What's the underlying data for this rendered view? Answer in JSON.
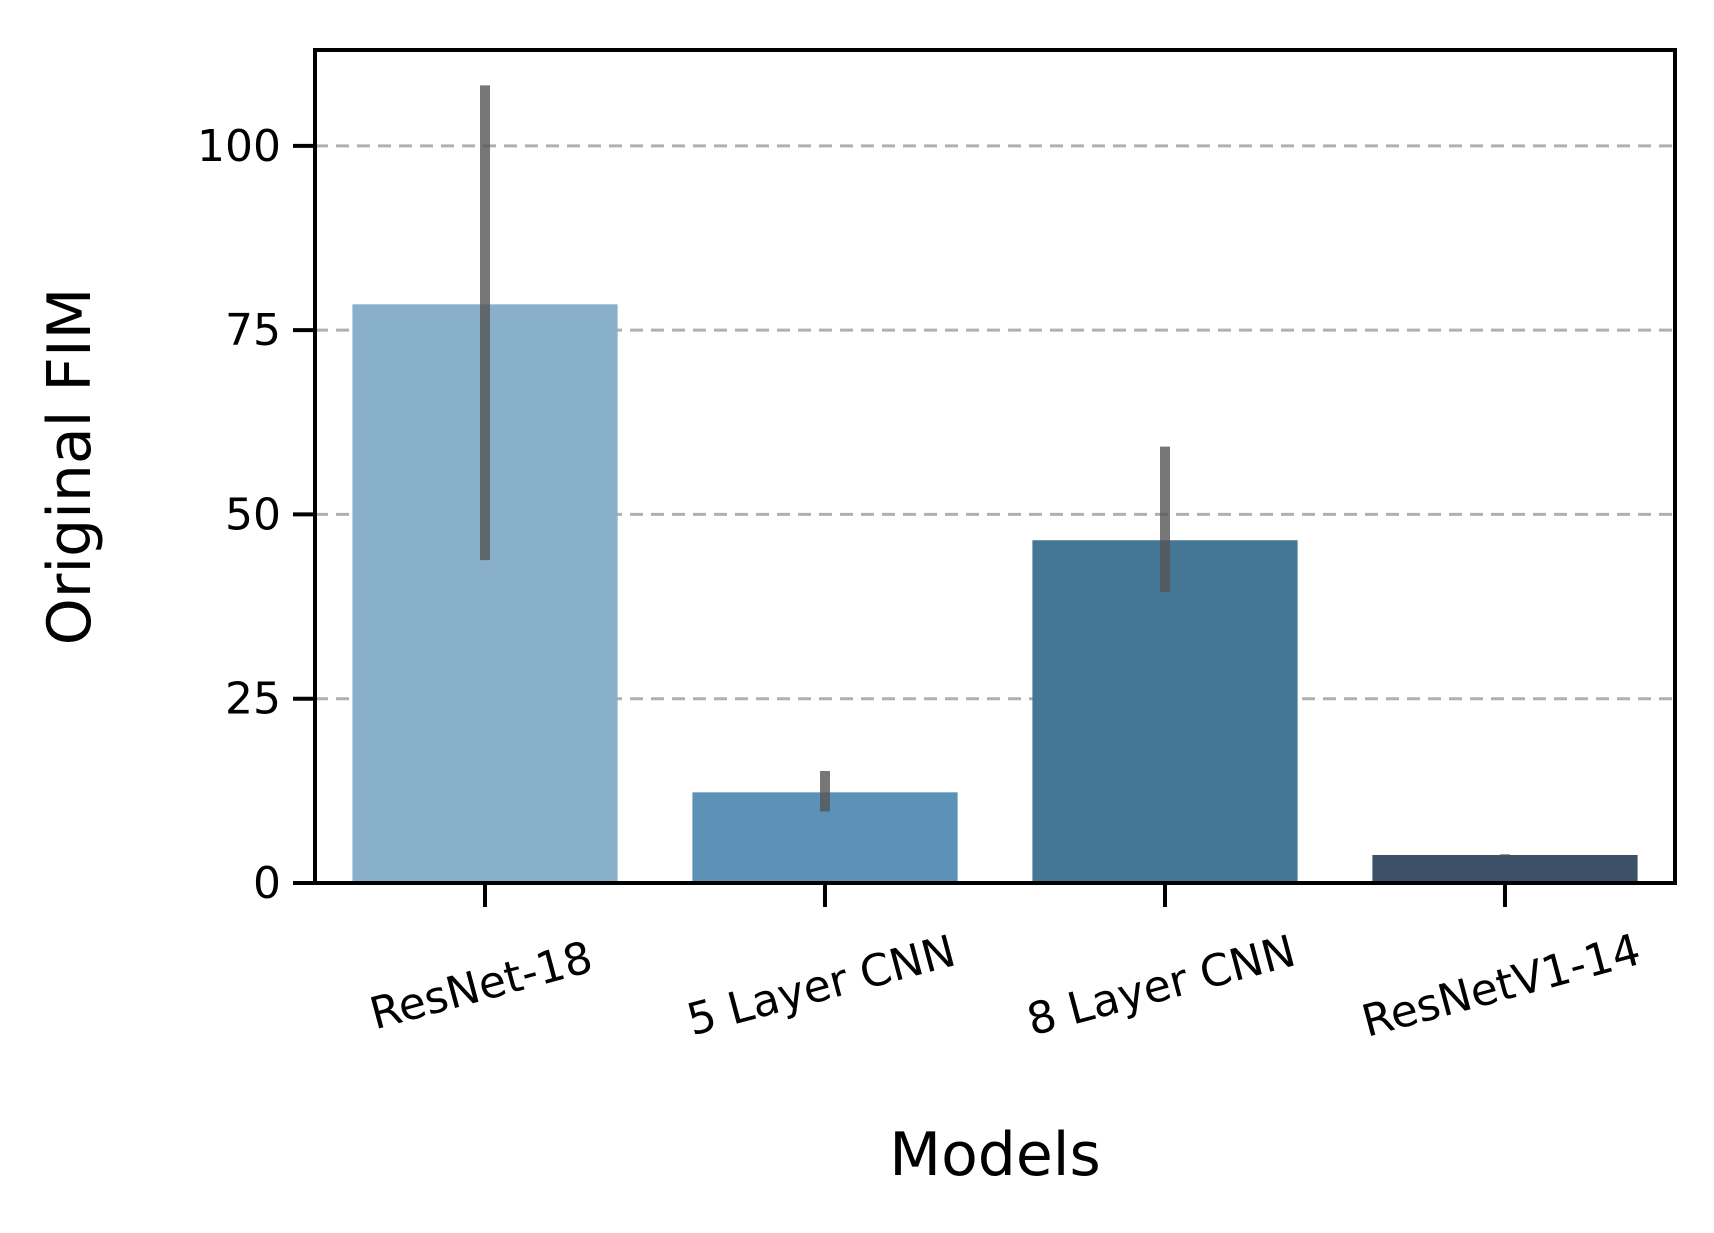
{
  "chart_data": {
    "type": "bar",
    "title": "",
    "xlabel": "Models",
    "ylabel": "Original FIM",
    "categories": [
      "ResNet-18",
      "5 Layer CNN",
      "8 Layer CNN",
      "ResNetV1-14"
    ],
    "values": [
      78.5,
      12.3,
      46.5,
      3.8
    ],
    "error_low": [
      43.8,
      9.7,
      39.5,
      3.7
    ],
    "error_high": [
      108.2,
      15.2,
      59.2,
      3.9
    ],
    "ylim": [
      0,
      113
    ],
    "yticks": [
      0,
      25,
      50,
      75,
      100
    ],
    "grid": "y, dashed",
    "colors": [
      "#89b0cb",
      "#5c91b8",
      "#467695",
      "#3c5168"
    ],
    "error_color": "#555555",
    "grid_color": "#b0b0b0"
  }
}
